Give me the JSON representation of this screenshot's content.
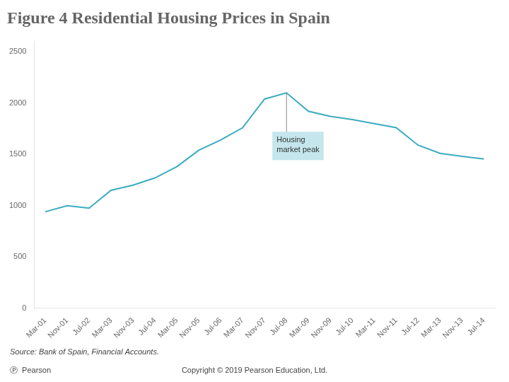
{
  "chart_data": {
    "type": "line",
    "title": "Figure 4 Residential Housing Prices in Spain",
    "source": "Source: Bank of Spain, Financial Accounts.",
    "copyright": "Copyright © 2019 Pearson Education, Ltd.",
    "logo": "Ⓟ  Pearson",
    "categories": [
      "Mar-01",
      "Nov-01",
      "Jul-02",
      "Mar-03",
      "Nov-03",
      "Jul-04",
      "Mar-05",
      "Nov-05",
      "Jul-06",
      "Mar-07",
      "Nov-07",
      "Jul-08",
      "Mar-09",
      "Nov-09",
      "Jul-10",
      "Mar-11",
      "Nov-11",
      "Jul-12",
      "Mar-13",
      "Nov-13",
      "Jul-14"
    ],
    "values": [
      940,
      1000,
      975,
      1150,
      1200,
      1270,
      1380,
      1540,
      1640,
      1760,
      2040,
      2100,
      1920,
      1870,
      1840,
      1800,
      1760,
      1590,
      1510,
      1480,
      1455
    ],
    "color": "#3aacbf",
    "ylim": [
      0,
      2600
    ],
    "yticks": [
      0,
      500,
      1000,
      1500,
      2000,
      2500
    ],
    "grid": false,
    "annotations": [
      {
        "text": "Housing\nmarket peak",
        "x": "Jul-08",
        "y": 2100
      }
    ]
  }
}
